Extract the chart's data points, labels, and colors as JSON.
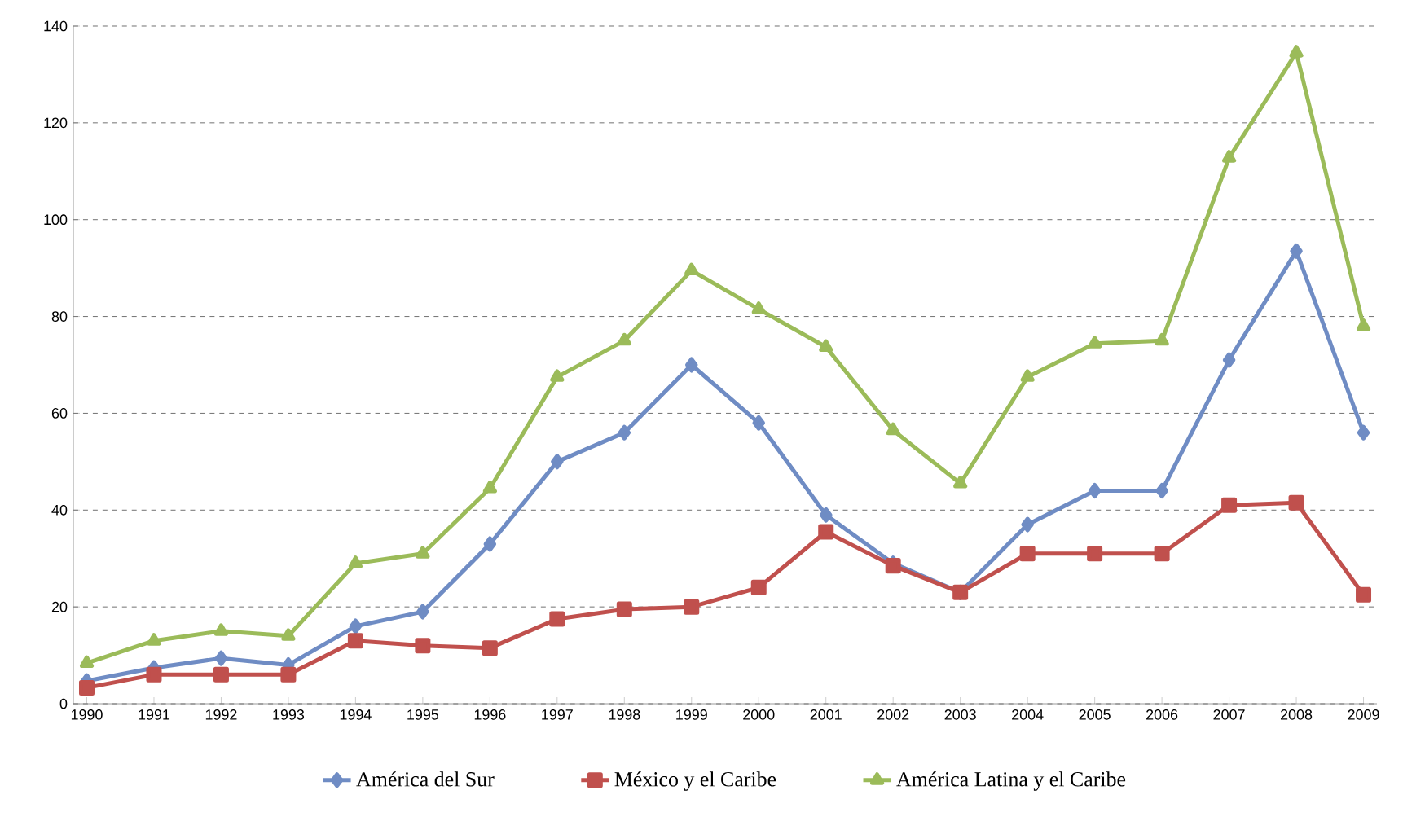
{
  "chart_data": {
    "type": "line",
    "categories": [
      "1990",
      "1991",
      "1992",
      "1993",
      "1994",
      "1995",
      "1996",
      "1997",
      "1998",
      "1999",
      "2000",
      "2001",
      "2002",
      "2003",
      "2004",
      "2005",
      "2006",
      "2007",
      "2008",
      "2009"
    ],
    "series": [
      {
        "name": "América del Sur",
        "color": "#6f8cc4",
        "marker": "diamond",
        "values": [
          4.7,
          7.4,
          9.4,
          8,
          16,
          19,
          33,
          50,
          56,
          70,
          58,
          39,
          29,
          23,
          37,
          44,
          44,
          71,
          93.5,
          56
        ]
      },
      {
        "name": "México y el Caribe",
        "color": "#c0504d",
        "marker": "square",
        "values": [
          3.3,
          6,
          6,
          6,
          13,
          12,
          11.5,
          17.5,
          19.5,
          20,
          24,
          35.5,
          28.5,
          23,
          31,
          31,
          31,
          41,
          41.5,
          22.5
        ]
      },
      {
        "name": "América Latina y el Caribe",
        "color": "#9bbb59",
        "marker": "triangle",
        "values": [
          8.4,
          13,
          15,
          14,
          29,
          31,
          44.5,
          67.5,
          75,
          89.5,
          81.5,
          73.7,
          56.5,
          45.5,
          67.5,
          74.4,
          75,
          112.8,
          134.5,
          78
        ]
      }
    ],
    "ylim": [
      0,
      140
    ],
    "yticks": [
      0,
      20,
      40,
      60,
      80,
      100,
      120,
      140
    ],
    "grid": "y",
    "legend": "bottom",
    "line_style": "solid"
  }
}
